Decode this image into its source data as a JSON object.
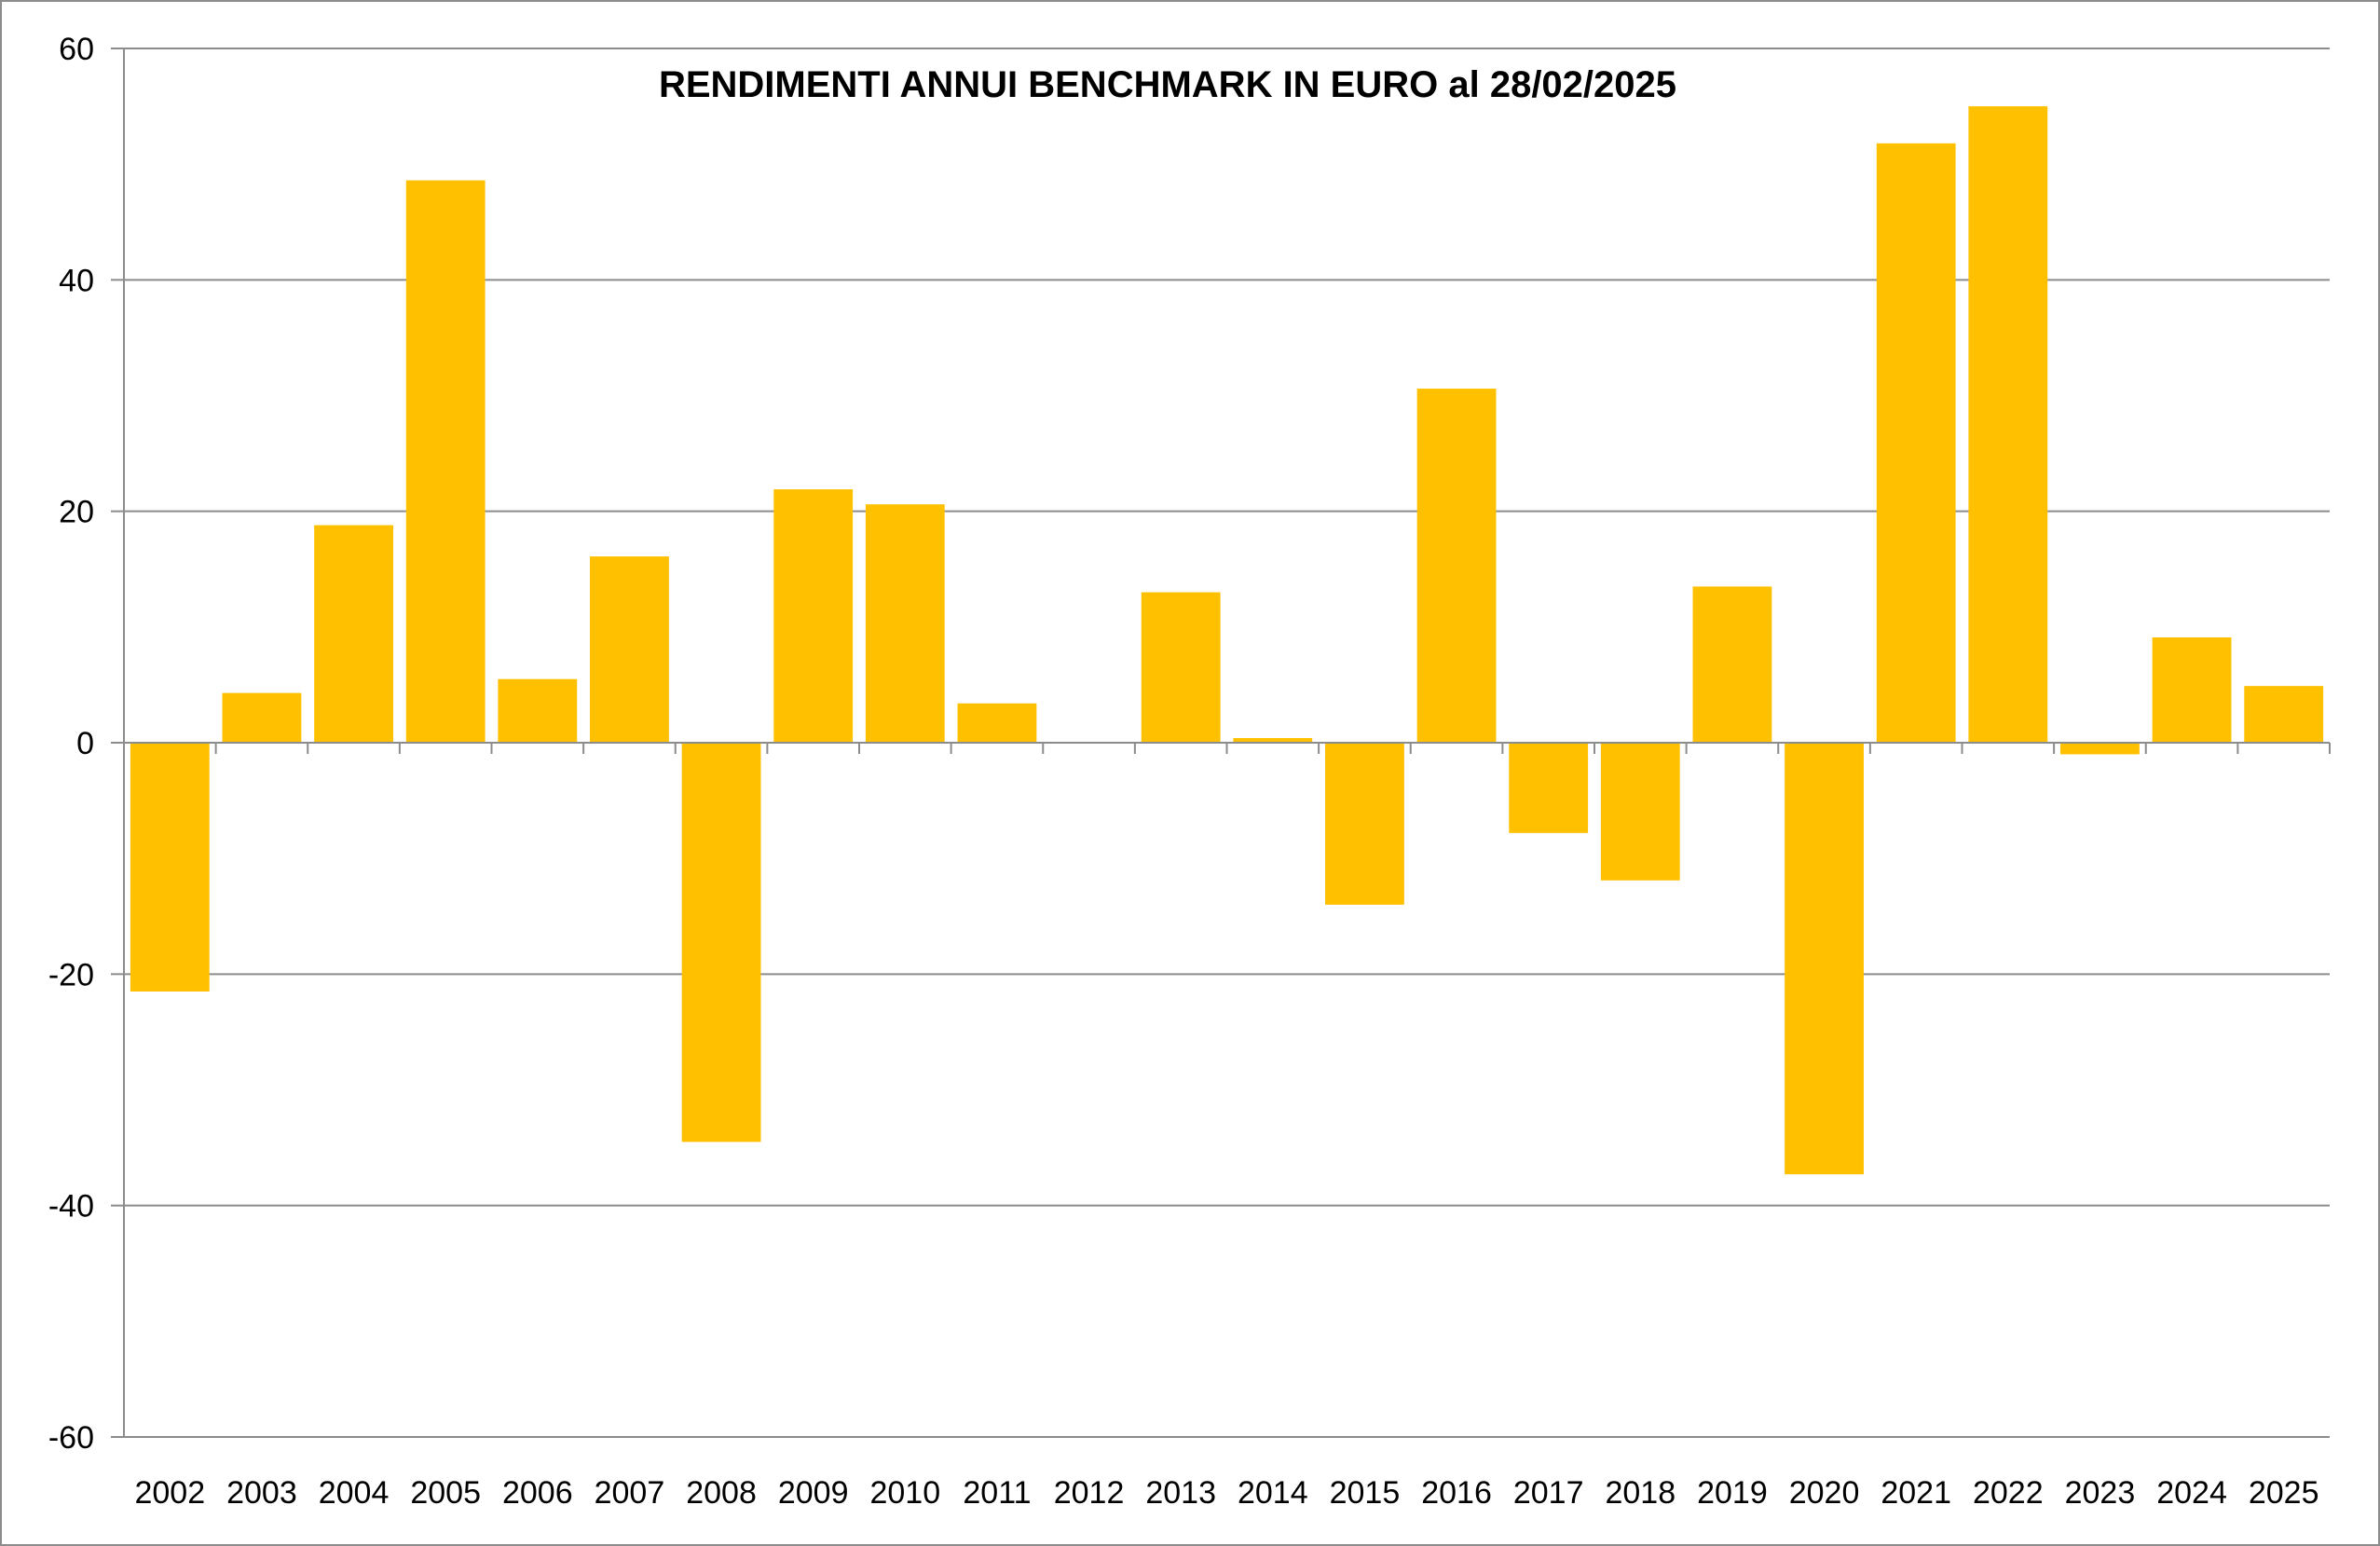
{
  "chart_data": {
    "type": "bar",
    "title": "RENDIMENTI ANNUI BENCHMARK IN EURO al 28/02/2025",
    "xlabel": "",
    "ylabel": "",
    "categories": [
      "2002",
      "2003",
      "2004",
      "2005",
      "2006",
      "2007",
      "2008",
      "2009",
      "2010",
      "2011",
      "2012",
      "2013",
      "2014",
      "2015",
      "2016",
      "2017",
      "2018",
      "2019",
      "2020",
      "2021",
      "2022",
      "2023",
      "2024",
      "2025"
    ],
    "values": [
      -21.5,
      4.3,
      18.8,
      48.6,
      5.5,
      16.1,
      -34.5,
      21.9,
      20.6,
      3.4,
      0,
      13.0,
      0.4,
      -14.0,
      30.6,
      -7.8,
      -11.9,
      13.5,
      -37.3,
      51.8,
      55.0,
      -1.0,
      9.1,
      4.9
    ],
    "ylim": [
      -60,
      60
    ],
    "yticks": [
      "-60",
      "-40",
      "-20",
      "0",
      "20",
      "40",
      "60"
    ],
    "grid": true,
    "legend": "none",
    "colors": {
      "bar": "#FFC000",
      "grid": "#8c8c8c"
    }
  }
}
